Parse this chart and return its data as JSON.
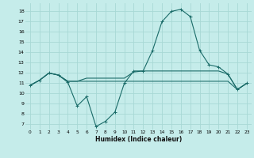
{
  "bg_color": "#c5ecea",
  "grid_color": "#a8d8d5",
  "line_color": "#1a6b68",
  "xlabel": "Humidex (Indice chaleur)",
  "ylim": [
    6.5,
    18.8
  ],
  "xlim": [
    -0.5,
    23.5
  ],
  "yticks": [
    7,
    8,
    9,
    10,
    11,
    12,
    13,
    14,
    15,
    16,
    17,
    18
  ],
  "xticks": [
    0,
    1,
    2,
    3,
    4,
    5,
    6,
    7,
    8,
    9,
    10,
    11,
    12,
    13,
    14,
    15,
    16,
    17,
    18,
    19,
    20,
    21,
    22,
    23
  ],
  "line1_x": [
    0,
    1,
    2,
    3,
    4,
    5,
    6,
    7,
    8,
    9,
    10,
    11,
    12,
    13,
    14,
    15,
    16,
    17,
    18,
    19,
    20,
    21,
    22,
    23
  ],
  "line1_y": [
    10.8,
    11.3,
    12.0,
    11.8,
    11.1,
    8.8,
    9.7,
    6.8,
    7.3,
    8.2,
    11.0,
    12.2,
    12.2,
    14.2,
    17.0,
    18.0,
    18.2,
    17.5,
    14.2,
    12.8,
    12.6,
    11.9,
    10.4,
    11.0
  ],
  "line2_x": [
    0,
    1,
    2,
    3,
    4,
    5,
    6,
    7,
    8,
    9,
    10,
    11,
    12,
    13,
    14,
    15,
    16,
    17,
    18,
    19,
    20,
    21,
    22,
    23
  ],
  "line2_y": [
    10.8,
    11.3,
    12.0,
    11.8,
    11.2,
    11.2,
    11.5,
    11.5,
    11.5,
    11.5,
    11.5,
    12.1,
    12.2,
    12.2,
    12.2,
    12.2,
    12.2,
    12.2,
    12.2,
    12.2,
    12.2,
    11.9,
    10.4,
    11.0
  ],
  "line3_x": [
    0,
    1,
    2,
    3,
    4,
    5,
    6,
    7,
    8,
    9,
    10,
    11,
    12,
    13,
    14,
    15,
    16,
    17,
    18,
    19,
    20,
    21,
    22,
    23
  ],
  "line3_y": [
    10.8,
    11.3,
    12.0,
    11.8,
    11.2,
    11.2,
    11.2,
    11.2,
    11.2,
    11.2,
    11.2,
    11.2,
    11.2,
    11.2,
    11.2,
    11.2,
    11.2,
    11.2,
    11.2,
    11.2,
    11.2,
    11.2,
    10.4,
    11.0
  ]
}
